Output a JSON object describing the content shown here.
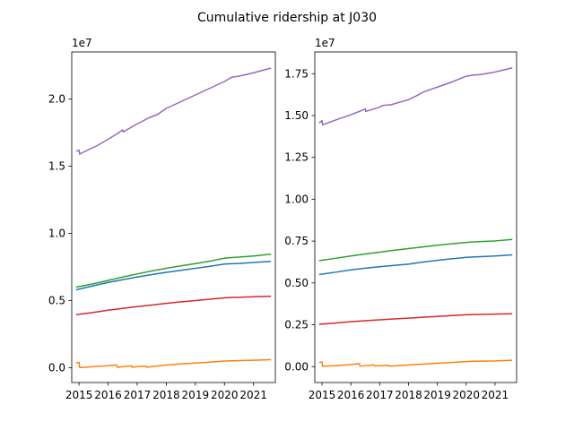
{
  "figure": {
    "title": "Cumulative ridership at J030"
  },
  "colors": {
    "blue": "#1f77b4",
    "orange": "#ff7f0e",
    "green": "#2ca02c",
    "red": "#d62728",
    "purple": "#9467bd"
  },
  "chart_data": [
    {
      "type": "line",
      "title": "",
      "xlabel": "",
      "ylabel": "",
      "x_ticks": [
        "2015",
        "2016",
        "2017",
        "2018",
        "2019",
        "2020",
        "2021"
      ],
      "xlim": [
        2014.75,
        2021.75
      ],
      "ylim": [
        -1100000,
        23500000
      ],
      "y_ticks": [
        "0.0",
        "0.5",
        "1.0",
        "1.5",
        "2.0"
      ],
      "y_tick_values": [
        0,
        5000000,
        10000000,
        15000000,
        20000000
      ],
      "offset_text": "1e7",
      "grid": false,
      "series": [
        {
          "color": "#1f77b4",
          "x": [
            2014.9,
            2015.5,
            2016.0,
            2016.5,
            2017.0,
            2017.5,
            2018.0,
            2018.5,
            2019.0,
            2019.5,
            2020.0,
            2020.25,
            2020.5,
            2021.0,
            2021.6
          ],
          "y": [
            5800000,
            6100000,
            6350000,
            6550000,
            6750000,
            6930000,
            7100000,
            7250000,
            7400000,
            7550000,
            7720000,
            7740000,
            7760000,
            7830000,
            7920000
          ]
        },
        {
          "color": "#ff7f0e",
          "x": [
            2014.9,
            2015.0,
            2015.02,
            2015.3,
            2015.5,
            2016.0,
            2016.3,
            2016.32,
            2016.8,
            2016.82,
            2017.1,
            2017.3,
            2017.32,
            2018.0,
            2018.5,
            2019.0,
            2019.5,
            2020.0,
            2020.25,
            2021.0,
            2021.6
          ],
          "y": [
            350000,
            400000,
            20000,
            50000,
            80000,
            150000,
            200000,
            30000,
            150000,
            40000,
            100000,
            120000,
            40000,
            200000,
            280000,
            350000,
            420000,
            500000,
            520000,
            560000,
            600000
          ]
        },
        {
          "color": "#2ca02c",
          "x": [
            2014.9,
            2015.5,
            2016.0,
            2016.5,
            2017.0,
            2017.5,
            2018.0,
            2018.5,
            2019.0,
            2019.5,
            2020.0,
            2020.25,
            2020.5,
            2021.0,
            2021.6
          ],
          "y": [
            6000000,
            6250000,
            6500000,
            6750000,
            6980000,
            7200000,
            7400000,
            7580000,
            7750000,
            7930000,
            8150000,
            8200000,
            8230000,
            8320000,
            8450000
          ]
        },
        {
          "color": "#d62728",
          "x": [
            2014.9,
            2015.5,
            2016.0,
            2016.5,
            2017.0,
            2017.5,
            2018.0,
            2018.5,
            2019.0,
            2019.5,
            2020.0,
            2020.25,
            2020.5,
            2021.0,
            2021.6
          ],
          "y": [
            3950000,
            4120000,
            4280000,
            4420000,
            4550000,
            4670000,
            4790000,
            4900000,
            5000000,
            5100000,
            5200000,
            5230000,
            5240000,
            5280000,
            5320000
          ]
        },
        {
          "color": "#9467bd",
          "x": [
            2014.9,
            2015.0,
            2015.02,
            2015.3,
            2015.6,
            2016.0,
            2016.3,
            2016.5,
            2016.52,
            2017.0,
            2017.1,
            2017.4,
            2017.7,
            2018.0,
            2018.5,
            2019.0,
            2019.5,
            2020.0,
            2020.25,
            2020.5,
            2021.0,
            2021.6
          ],
          "y": [
            16100000,
            16200000,
            15900000,
            16200000,
            16500000,
            17000000,
            17400000,
            17700000,
            17550000,
            18150000,
            18250000,
            18600000,
            18850000,
            19300000,
            19800000,
            20300000,
            20800000,
            21300000,
            21620000,
            21700000,
            21950000,
            22300000
          ]
        }
      ]
    },
    {
      "type": "line",
      "title": "",
      "xlabel": "",
      "ylabel": "",
      "x_ticks": [
        "2015",
        "2016",
        "2017",
        "2018",
        "2019",
        "2020",
        "2021"
      ],
      "xlim": [
        2014.75,
        2021.75
      ],
      "ylim": [
        -950000,
        18800000
      ],
      "y_ticks": [
        "0.00",
        "0.25",
        "0.50",
        "0.75",
        "1.00",
        "1.25",
        "1.50",
        "1.75"
      ],
      "y_tick_values": [
        0,
        2500000,
        5000000,
        7500000,
        10000000,
        12500000,
        15000000,
        17500000
      ],
      "offset_text": "1e7",
      "grid": false,
      "series": [
        {
          "color": "#1f77b4",
          "x": [
            2014.9,
            2015.5,
            2016.0,
            2016.5,
            2017.0,
            2017.5,
            2018.0,
            2018.5,
            2019.0,
            2019.5,
            2020.0,
            2020.25,
            2020.5,
            2021.0,
            2021.6
          ],
          "y": [
            5500000,
            5650000,
            5780000,
            5880000,
            5970000,
            6050000,
            6120000,
            6250000,
            6350000,
            6440000,
            6530000,
            6550000,
            6570000,
            6610000,
            6680000
          ]
        },
        {
          "color": "#ff7f0e",
          "x": [
            2014.9,
            2015.0,
            2015.02,
            2015.5,
            2016.0,
            2016.3,
            2016.32,
            2016.8,
            2016.82,
            2017.3,
            2017.32,
            2018.0,
            2018.5,
            2019.0,
            2019.5,
            2020.0,
            2020.25,
            2021.0,
            2021.6
          ],
          "y": [
            250000,
            280000,
            20000,
            60000,
            120000,
            180000,
            30000,
            100000,
            40000,
            80000,
            30000,
            100000,
            150000,
            200000,
            250000,
            300000,
            320000,
            340000,
            380000
          ]
        },
        {
          "color": "#2ca02c",
          "x": [
            2014.9,
            2015.5,
            2016.0,
            2016.5,
            2017.0,
            2017.5,
            2018.0,
            2018.5,
            2019.0,
            2019.5,
            2020.0,
            2020.25,
            2020.5,
            2021.0,
            2021.6
          ],
          "y": [
            6330000,
            6480000,
            6610000,
            6730000,
            6840000,
            6950000,
            7050000,
            7150000,
            7250000,
            7340000,
            7420000,
            7450000,
            7470000,
            7510000,
            7600000
          ]
        },
        {
          "color": "#d62728",
          "x": [
            2014.9,
            2015.5,
            2016.0,
            2016.5,
            2017.0,
            2017.5,
            2018.0,
            2018.5,
            2019.0,
            2019.5,
            2020.0,
            2020.25,
            2020.5,
            2021.0,
            2021.6
          ],
          "y": [
            2530000,
            2610000,
            2680000,
            2740000,
            2800000,
            2850000,
            2900000,
            2950000,
            3000000,
            3050000,
            3100000,
            3110000,
            3120000,
            3140000,
            3160000
          ]
        },
        {
          "color": "#9467bd",
          "x": [
            2014.9,
            2015.0,
            2015.02,
            2015.5,
            2016.0,
            2016.3,
            2016.5,
            2016.52,
            2017.0,
            2017.1,
            2017.4,
            2017.7,
            2018.0,
            2018.3,
            2018.5,
            2019.0,
            2019.5,
            2020.0,
            2020.25,
            2020.5,
            2021.0,
            2021.6
          ],
          "y": [
            14550000,
            14700000,
            14450000,
            14750000,
            15050000,
            15250000,
            15400000,
            15250000,
            15500000,
            15600000,
            15650000,
            15800000,
            15950000,
            16200000,
            16400000,
            16700000,
            17000000,
            17350000,
            17420000,
            17450000,
            17600000,
            17850000
          ]
        }
      ]
    }
  ]
}
